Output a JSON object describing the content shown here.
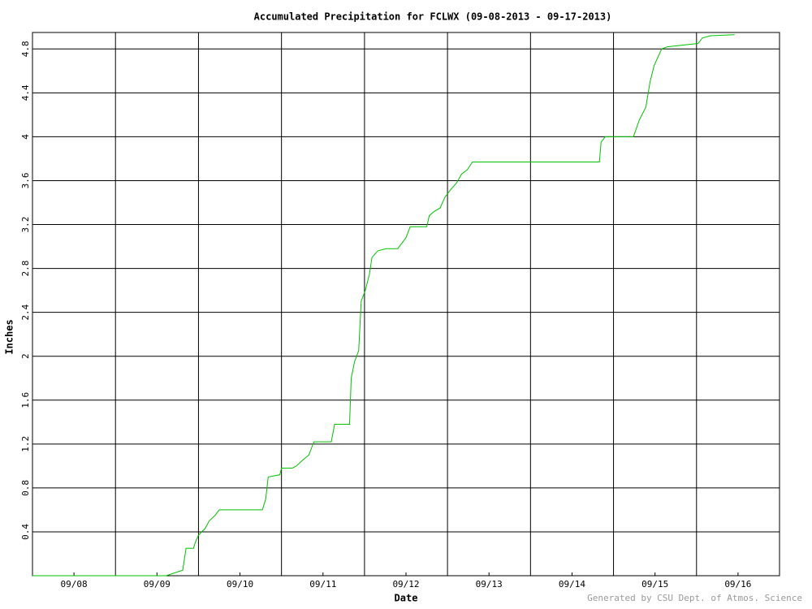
{
  "chart_data": {
    "type": "line",
    "title": "Accumulated Precipitation for FCLWX (09-08-2013 - 09-17-2013)",
    "x_label": "Date",
    "y_label": "Inches",
    "footer": "Generated by CSU Dept. of Atmos. Science",
    "x": [
      0,
      1.61,
      1.81,
      1.85,
      1.94,
      1.96,
      2.0,
      2.08,
      2.13,
      2.2,
      2.25,
      2.77,
      2.81,
      2.84,
      2.98,
      3.0,
      3.13,
      3.18,
      3.25,
      3.33,
      3.39,
      3.6,
      3.64,
      3.82,
      3.84,
      3.88,
      3.93,
      3.96,
      4.01,
      4.06,
      4.09,
      4.16,
      4.26,
      4.4,
      4.5,
      4.55,
      4.75,
      4.78,
      4.84,
      4.91,
      4.97,
      5.04,
      5.11,
      5.17,
      5.24,
      5.3,
      6.83,
      6.85,
      6.9,
      7.24,
      7.31,
      7.39,
      7.44,
      7.49,
      7.58,
      7.65,
      8.02,
      8.07,
      8.17,
      8.46
    ],
    "series": [
      {
        "name": "FCLWX",
        "color": "#00c000",
        "values": [
          0,
          0,
          0.05,
          0.25,
          0.25,
          0.3,
          0.37,
          0.43,
          0.5,
          0.55,
          0.6,
          0.6,
          0.7,
          0.9,
          0.92,
          0.98,
          0.98,
          1.0,
          1.05,
          1.1,
          1.22,
          1.22,
          1.38,
          1.38,
          1.8,
          1.95,
          2.05,
          2.5,
          2.6,
          2.75,
          2.9,
          2.96,
          2.98,
          2.98,
          3.08,
          3.18,
          3.18,
          3.28,
          3.32,
          3.35,
          3.45,
          3.52,
          3.58,
          3.66,
          3.7,
          3.77,
          3.77,
          3.95,
          4.0,
          4.0,
          4.15,
          4.27,
          4.5,
          4.65,
          4.8,
          4.82,
          4.85,
          4.9,
          4.92,
          4.93
        ]
      }
    ],
    "xlim": [
      0,
      9
    ],
    "xticks": [
      {
        "value": 0.5,
        "label": "09/08"
      },
      {
        "value": 1.5,
        "label": "09/09"
      },
      {
        "value": 2.5,
        "label": "09/10"
      },
      {
        "value": 3.5,
        "label": "09/11"
      },
      {
        "value": 4.5,
        "label": "09/12"
      },
      {
        "value": 5.5,
        "label": "09/13"
      },
      {
        "value": 6.5,
        "label": "09/14"
      },
      {
        "value": 7.5,
        "label": "09/15"
      },
      {
        "value": 8.5,
        "label": "09/16"
      }
    ],
    "xgrid": [
      1,
      2,
      3,
      4,
      5,
      6,
      7,
      8
    ],
    "ylim": [
      0,
      4.95
    ],
    "yticks": [
      0.4,
      0.8,
      1.2,
      1.6,
      2,
      2.4,
      2.8,
      3.2,
      3.6,
      4,
      4.4,
      4.8
    ],
    "grid": true
  }
}
